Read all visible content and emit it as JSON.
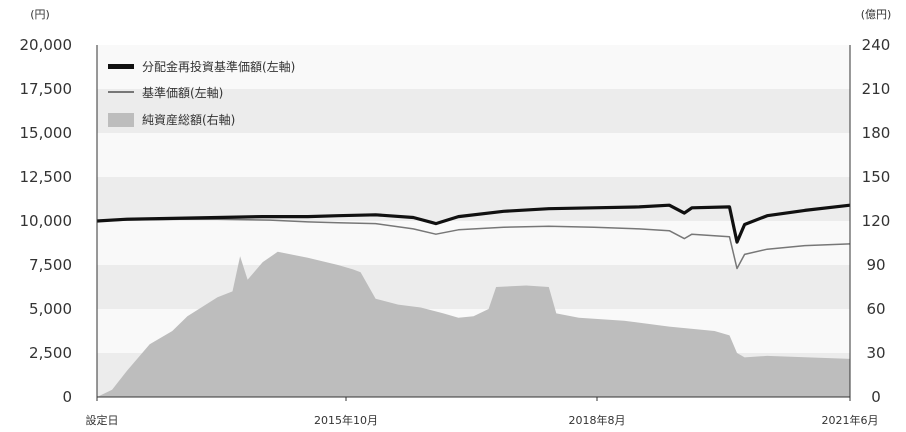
{
  "chart_data": {
    "type": "line",
    "y_left_unit": "(円)",
    "y_right_unit": "(億円)",
    "y_left_ticks": [
      "20,000",
      "17,500",
      "15,000",
      "12,500",
      "10,000",
      "7,500",
      "5,000",
      "2,500",
      "0"
    ],
    "y_right_ticks": [
      "240",
      "210",
      "180",
      "150",
      "120",
      "90",
      "60",
      "30",
      "0"
    ],
    "ylim_left": [
      0,
      20000
    ],
    "ylim_right": [
      0,
      240
    ],
    "x_ticks": [
      "設定日",
      "2015年10月",
      "2018年8月",
      "2021年6月"
    ],
    "xlim": [
      "2013-02",
      "2021-06"
    ],
    "grid": "horizontal bands",
    "legend_position": "top-left",
    "series": [
      {
        "name": "分配金再投資基準価額(左軸)",
        "axis": "left",
        "style": "line-thick",
        "color": "#111111",
        "points": [
          [
            "2013-02",
            10000
          ],
          [
            "2013-06",
            10100
          ],
          [
            "2013-12",
            10150
          ],
          [
            "2014-06",
            10200
          ],
          [
            "2014-12",
            10250
          ],
          [
            "2015-06",
            10250
          ],
          [
            "2015-10",
            10300
          ],
          [
            "2016-03",
            10350
          ],
          [
            "2016-08",
            10200
          ],
          [
            "2016-11",
            9850
          ],
          [
            "2017-02",
            10250
          ],
          [
            "2017-08",
            10550
          ],
          [
            "2018-02",
            10700
          ],
          [
            "2018-08",
            10750
          ],
          [
            "2019-02",
            10800
          ],
          [
            "2019-06",
            10900
          ],
          [
            "2019-08",
            10450
          ],
          [
            "2019-09",
            10750
          ],
          [
            "2020-02",
            10800
          ],
          [
            "2020-03",
            8800
          ],
          [
            "2020-04",
            9800
          ],
          [
            "2020-07",
            10300
          ],
          [
            "2020-12",
            10600
          ],
          [
            "2021-06",
            10900
          ]
        ]
      },
      {
        "name": "基準価額(左軸)",
        "axis": "left",
        "style": "line-thin",
        "color": "#777777",
        "points": [
          [
            "2013-02",
            10000
          ],
          [
            "2013-06",
            10050
          ],
          [
            "2014-01",
            10100
          ],
          [
            "2014-06",
            10100
          ],
          [
            "2015-01",
            10050
          ],
          [
            "2015-06",
            9950
          ],
          [
            "2015-10",
            9900
          ],
          [
            "2016-03",
            9850
          ],
          [
            "2016-08",
            9550
          ],
          [
            "2016-11",
            9250
          ],
          [
            "2017-02",
            9500
          ],
          [
            "2017-08",
            9650
          ],
          [
            "2018-02",
            9700
          ],
          [
            "2018-08",
            9650
          ],
          [
            "2019-02",
            9550
          ],
          [
            "2019-06",
            9450
          ],
          [
            "2019-08",
            9000
          ],
          [
            "2019-09",
            9250
          ],
          [
            "2020-02",
            9100
          ],
          [
            "2020-03",
            7300
          ],
          [
            "2020-04",
            8100
          ],
          [
            "2020-07",
            8400
          ],
          [
            "2020-12",
            8600
          ],
          [
            "2021-06",
            8700
          ]
        ]
      },
      {
        "name": "純資産総額(右軸)",
        "axis": "right",
        "style": "area",
        "color": "#bdbdbd",
        "points": [
          [
            "2013-02",
            0
          ],
          [
            "2013-04",
            5
          ],
          [
            "2013-06",
            18
          ],
          [
            "2013-09",
            36
          ],
          [
            "2013-12",
            45
          ],
          [
            "2014-02",
            55
          ],
          [
            "2014-06",
            68
          ],
          [
            "2014-08",
            72
          ],
          [
            "2014-09",
            96
          ],
          [
            "2014-10",
            80
          ],
          [
            "2014-12",
            92
          ],
          [
            "2015-02",
            99
          ],
          [
            "2015-06",
            95
          ],
          [
            "2015-10",
            90
          ],
          [
            "2015-12",
            87
          ],
          [
            "2016-01",
            85
          ],
          [
            "2016-03",
            67
          ],
          [
            "2016-06",
            63
          ],
          [
            "2016-09",
            61
          ],
          [
            "2016-12",
            57
          ],
          [
            "2017-02",
            54
          ],
          [
            "2017-04",
            55
          ],
          [
            "2017-06",
            60
          ],
          [
            "2017-07",
            75
          ],
          [
            "2017-11",
            76
          ],
          [
            "2018-02",
            75
          ],
          [
            "2018-03",
            57
          ],
          [
            "2018-06",
            54
          ],
          [
            "2018-12",
            52
          ],
          [
            "2019-06",
            48
          ],
          [
            "2019-12",
            45
          ],
          [
            "2020-02",
            42
          ],
          [
            "2020-03",
            30
          ],
          [
            "2020-04",
            27
          ],
          [
            "2020-07",
            28
          ],
          [
            "2021-06",
            26
          ]
        ]
      }
    ]
  },
  "colors": {
    "band_dark": "#ececec",
    "band_light": "#f9f9f9",
    "axis": "#333333"
  }
}
